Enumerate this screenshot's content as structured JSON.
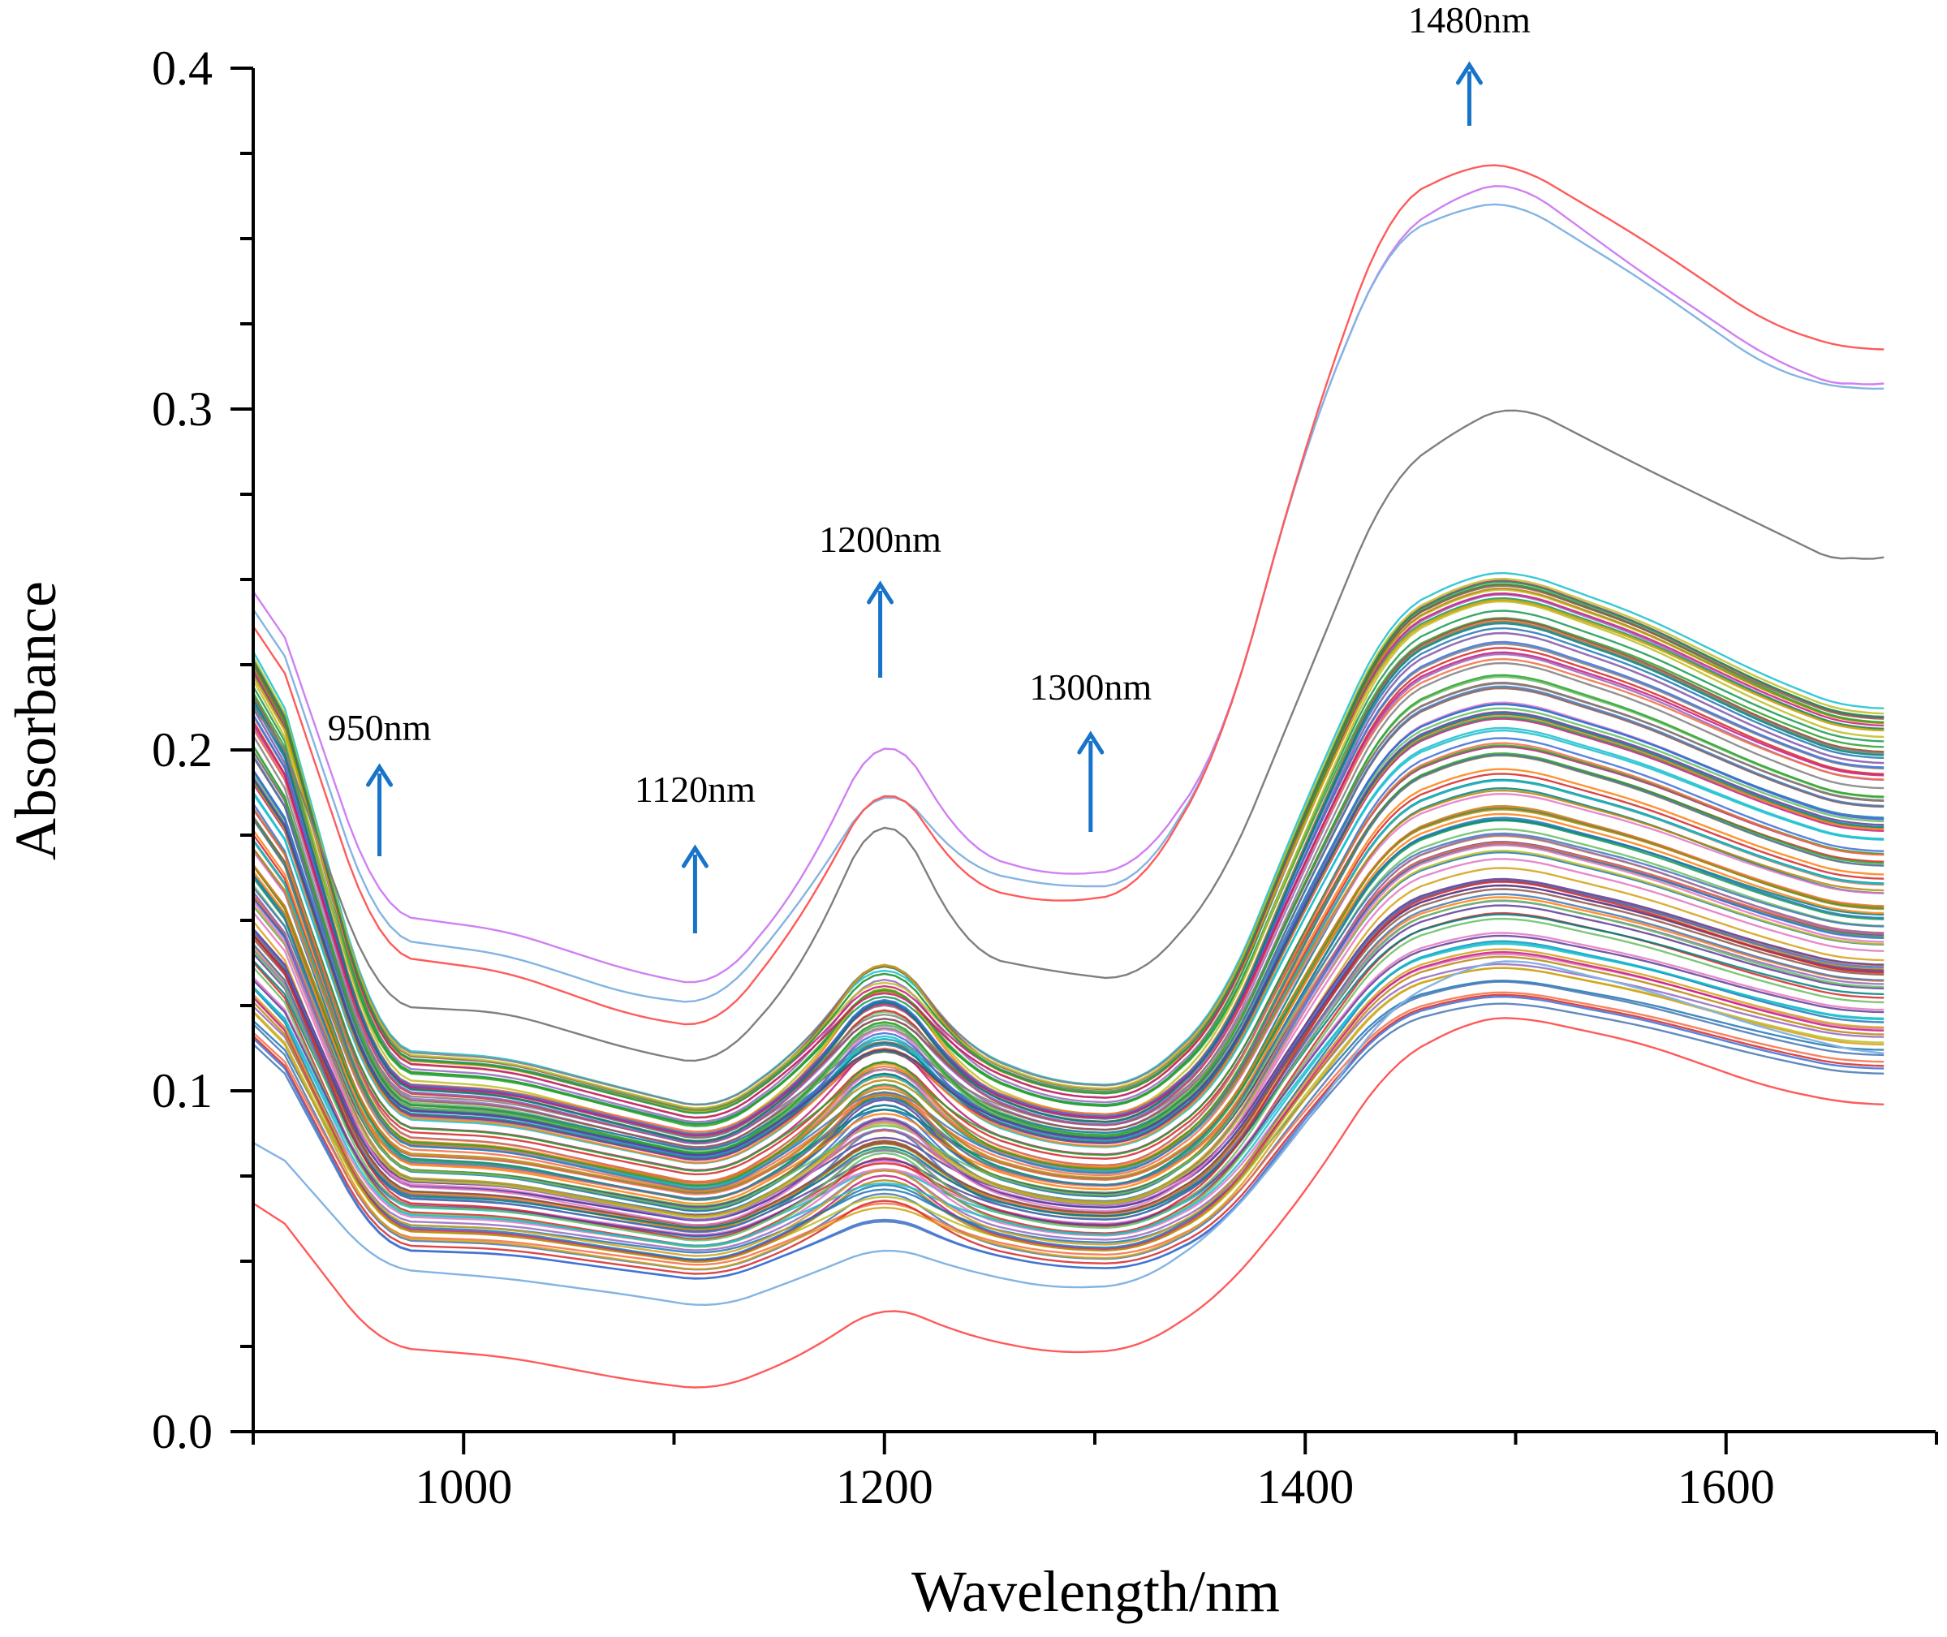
{
  "chart_data": {
    "type": "line",
    "title": "",
    "xlabel": "Wavelength/nm",
    "ylabel": "Absorbance",
    "xlim": [
      900,
      1700
    ],
    "ylim": [
      0.0,
      0.4
    ],
    "x_ticks": [
      1000,
      1200,
      1400,
      1600
    ],
    "x_tick_labels": [
      "1000",
      "1200",
      "1400",
      "1600"
    ],
    "y_ticks": [
      0.0,
      0.1,
      0.2,
      0.3,
      0.4
    ],
    "y_tick_labels": [
      "0.0",
      "0.1",
      "0.2",
      "0.3",
      "0.4"
    ],
    "grid": false,
    "legend": "none",
    "annotations": [
      {
        "text": "950nm",
        "x": 960
      },
      {
        "text": "1120nm",
        "x": 1110
      },
      {
        "text": "1200nm",
        "x": 1198
      },
      {
        "text": "1300nm",
        "x": 1298
      },
      {
        "text": "1480nm",
        "x": 1478
      }
    ],
    "annotation_color": "#1874c8",
    "x": [
      900,
      960,
      1020,
      1080,
      1120,
      1160,
      1200,
      1240,
      1280,
      1320,
      1360,
      1400,
      1440,
      1480,
      1500,
      1560,
      1620,
      1660,
      1675
    ],
    "template": [
      0.2,
      0.09,
      0.088,
      0.08,
      0.075,
      0.09,
      0.115,
      0.09,
      0.082,
      0.081,
      0.1,
      0.15,
      0.195,
      0.205,
      0.206,
      0.195,
      0.18,
      0.172,
      0.173
    ],
    "series_count": 120,
    "series": [
      {
        "values": [
          0.26,
          0.152,
          0.147,
          0.135,
          0.13,
          0.16,
          0.21,
          0.17,
          0.163,
          0.165,
          0.2,
          0.29,
          0.35,
          0.365,
          0.367,
          0.34,
          0.315,
          0.305,
          0.31
        ],
        "color": "#cf80f2"
      },
      {
        "values": [
          0.255,
          0.145,
          0.14,
          0.128,
          0.125,
          0.155,
          0.193,
          0.165,
          0.16,
          0.16,
          0.2,
          0.29,
          0.35,
          0.36,
          0.361,
          0.338,
          0.312,
          0.305,
          0.307
        ],
        "color": "#83b4e2"
      },
      {
        "values": [
          0.25,
          0.14,
          0.135,
          0.122,
          0.118,
          0.15,
          0.195,
          0.16,
          0.155,
          0.158,
          0.2,
          0.29,
          0.36,
          0.372,
          0.372,
          0.35,
          0.325,
          0.317,
          0.318
        ],
        "color": "#ff5a5a"
      },
      {
        "values": [
          0.225,
          0.125,
          0.123,
          0.112,
          0.107,
          0.135,
          0.188,
          0.14,
          0.135,
          0.132,
          0.16,
          0.22,
          0.28,
          0.297,
          0.302,
          0.283,
          0.265,
          0.253,
          0.26
        ],
        "color": "#7f7f7f"
      },
      {
        "values": [
          0.09,
          0.048,
          0.045,
          0.04,
          0.036,
          0.045,
          0.055,
          0.047,
          0.042,
          0.043,
          0.06,
          0.09,
          0.125,
          0.137,
          0.139,
          0.13,
          0.118,
          0.112,
          0.11
        ],
        "color": "#83b4e2"
      },
      {
        "values": [
          0.073,
          0.025,
          0.022,
          0.015,
          0.012,
          0.022,
          0.038,
          0.028,
          0.023,
          0.024,
          0.04,
          0.07,
          0.108,
          0.121,
          0.122,
          0.114,
          0.101,
          0.096,
          0.096
        ],
        "color": "#ff5a5a"
      }
    ],
    "palette": [
      "#1f77b4",
      "#ff7f0e",
      "#2ca02c",
      "#d62728",
      "#9467bd",
      "#8c564b",
      "#e377c2",
      "#7f7f7f",
      "#bcbd22",
      "#17becf",
      "#3a6fd8",
      "#d4a017",
      "#1a9850",
      "#c51b7d",
      "#4575b4",
      "#f46d43",
      "#66bd63",
      "#5e3c99",
      "#008080",
      "#b8860b"
    ]
  }
}
